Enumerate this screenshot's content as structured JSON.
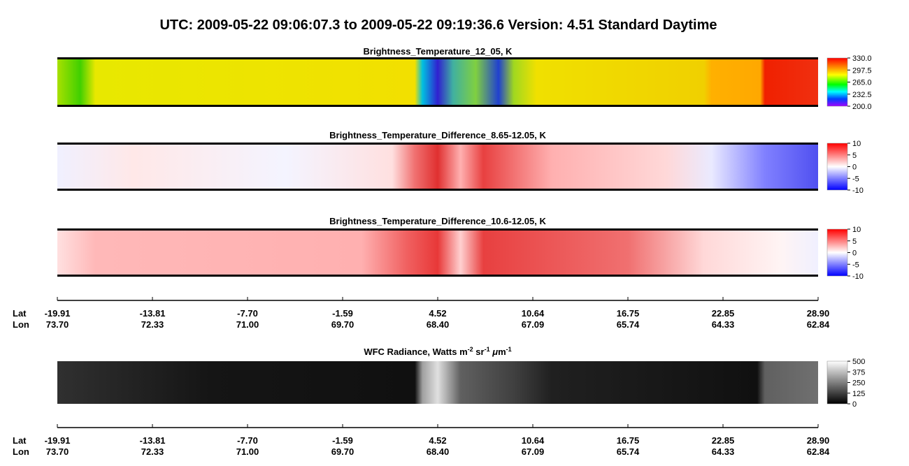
{
  "title": "UTC:  2009-05-22   09:06:07.3  to  2009-05-22   09:19:36.6    Version: 4.51  Standard Daytime",
  "panels": [
    {
      "title": "Brightness_Temperature_12_05, K",
      "ticks": [
        {
          "value": 330,
          "label": "330.0"
        },
        297.5,
        {
          "value": 265,
          "label": "265.0"
        },
        232.5,
        {
          "value": 200,
          "label": "200.0"
        }
      ]
    },
    {
      "title": "Brightness_Temperature_Difference_8.65-12.05, K",
      "ticks": [
        10,
        5,
        0,
        -5,
        -10
      ]
    },
    {
      "title": "Brightness_Temperature_Difference_10.6-12.05, K",
      "ticks": [
        10,
        5,
        0,
        -5,
        -10
      ]
    },
    {
      "title_parts": [
        "WFC Radiance, Watts m",
        "-2",
        " sr",
        "-1",
        " ",
        "μ",
        "m",
        "-1"
      ],
      "ticks": [
        500,
        375,
        250,
        125,
        0
      ]
    }
  ],
  "axis": {
    "lat_label": "Lat",
    "lon_label": "Lon",
    "lat": [
      -19.91,
      -13.81,
      {
        "value": -7.7,
        "label": "-7.70"
      },
      -1.59,
      4.52,
      10.64,
      16.75,
      22.85,
      {
        "value": 28.9,
        "label": "28.90"
      }
    ],
    "lon": [
      {
        "value": 73.7,
        "label": "73.70"
      },
      72.33,
      {
        "value": 71,
        "label": "71.00"
      },
      {
        "value": 69.7,
        "label": "69.70"
      },
      {
        "value": 68.4,
        "label": "68.40"
      },
      67.09,
      65.74,
      64.33,
      62.84
    ]
  }
}
